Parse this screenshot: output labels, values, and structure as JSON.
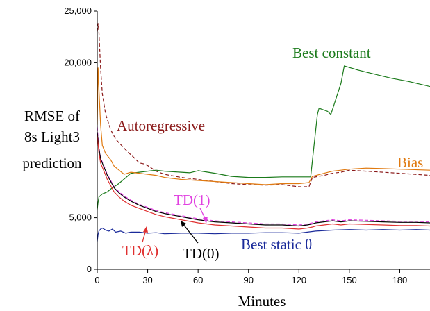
{
  "chart_data": {
    "type": "line",
    "xlabel": "Minutes",
    "ylabel_lines": [
      "RMSE of",
      "8s Light3",
      "prediction"
    ],
    "xlim": [
      0,
      198
    ],
    "ylim": [
      0,
      25000
    ],
    "x_ticks": [
      0,
      30,
      60,
      90,
      120,
      150,
      180
    ],
    "x_tick_labels": [
      "0",
      "30",
      "60",
      "90",
      "120",
      "150",
      "180"
    ],
    "y_ticks": [
      0,
      5000,
      20000,
      25000
    ],
    "y_tick_labels": [
      "0",
      "5,000",
      "20,000",
      "25,000"
    ],
    "grid": false,
    "annotations": [
      {
        "text": "Best constant",
        "color": "#1a7a1a"
      },
      {
        "text": "Autoregressive",
        "color": "#8b1a1a"
      },
      {
        "text": "Bias",
        "color": "#e07a10"
      },
      {
        "text": "TD(1)",
        "color": "#e040e0"
      },
      {
        "text": "TD(λ)",
        "color": "#e03030"
      },
      {
        "text": "TD(0)",
        "color": "#000000"
      },
      {
        "text": "Best static θ",
        "color": "#1a2a9a"
      }
    ],
    "series": [
      {
        "color": "#1a7a1a",
        "dash": false,
        "x": [
          0,
          0.5,
          1,
          3,
          6,
          9,
          12,
          15,
          20,
          25,
          30,
          35,
          40,
          45,
          50,
          55,
          60,
          70,
          80,
          90,
          100,
          110,
          120,
          126,
          127,
          131,
          132,
          137,
          139,
          145,
          147,
          155,
          165,
          175,
          185,
          198
        ],
        "y": [
          5800,
          6500,
          7000,
          7300,
          7500,
          7900,
          8200,
          8600,
          9300,
          9400,
          9500,
          9600,
          9500,
          9450,
          9400,
          9350,
          9550,
          9300,
          9000,
          8900,
          8900,
          8950,
          8950,
          8950,
          8950,
          15000,
          15600,
          15300,
          15000,
          18000,
          19700,
          19300,
          18900,
          18500,
          18200,
          17700
        ]
      },
      {
        "color": "#8b1a1a",
        "dash": true,
        "x": [
          0,
          0.5,
          1,
          2,
          3,
          5,
          8,
          11,
          15,
          18,
          22,
          25,
          28,
          30,
          35,
          40,
          50,
          60,
          70,
          80,
          90,
          100,
          110,
          120,
          126,
          128,
          135,
          140,
          145,
          150,
          160,
          170,
          180,
          198
        ],
        "y": [
          23000,
          23800,
          23000,
          19500,
          17000,
          15000,
          13500,
          12600,
          11900,
          11400,
          10800,
          10300,
          10200,
          10050,
          9500,
          9200,
          8900,
          8700,
          8500,
          8300,
          8200,
          8150,
          8200,
          8000,
          8000,
          8900,
          9100,
          9300,
          9400,
          9600,
          9500,
          9400,
          9300,
          9100
        ]
      },
      {
        "color": "#e07a10",
        "dash": false,
        "x": [
          0,
          0.5,
          1,
          2,
          3,
          5,
          8,
          10,
          13,
          16,
          20,
          25,
          30,
          35,
          40,
          45,
          50,
          60,
          70,
          80,
          90,
          100,
          110,
          120,
          126,
          128,
          135,
          140,
          145,
          150,
          160,
          170,
          180,
          198
        ],
        "y": [
          14000,
          19500,
          17500,
          14000,
          12000,
          11200,
          10600,
          10000,
          9600,
          9200,
          9400,
          9300,
          9200,
          9100,
          8900,
          8800,
          8700,
          8600,
          8500,
          8400,
          8300,
          8200,
          8300,
          8300,
          8400,
          9000,
          9300,
          9500,
          9600,
          9700,
          9800,
          9750,
          9700,
          9600
        ]
      },
      {
        "color": "#e040e0",
        "dash": true,
        "x": [
          0,
          1,
          2,
          4,
          6,
          8,
          10,
          13,
          16,
          20,
          25,
          30,
          35,
          40,
          50,
          60,
          70,
          80,
          90,
          100,
          110,
          120,
          125,
          128,
          130,
          140,
          145,
          150,
          160,
          170,
          180,
          190,
          198
        ],
        "y": [
          13800,
          11800,
          10800,
          10000,
          9200,
          8600,
          8000,
          7500,
          7100,
          6700,
          6300,
          6000,
          5700,
          5500,
          5200,
          4900,
          4700,
          4600,
          4500,
          4400,
          4400,
          4300,
          4400,
          4500,
          4600,
          4800,
          4700,
          4800,
          4750,
          4700,
          4650,
          4650,
          4600
        ]
      },
      {
        "color": "#000000",
        "dash": false,
        "x": [
          0,
          1,
          2,
          4,
          6,
          8,
          10,
          13,
          16,
          20,
          25,
          30,
          35,
          40,
          50,
          60,
          70,
          80,
          90,
          100,
          110,
          120,
          125,
          128,
          130,
          140,
          145,
          150,
          160,
          170,
          180,
          190,
          198
        ],
        "y": [
          13300,
          11700,
          10700,
          9900,
          9100,
          8500,
          7900,
          7400,
          7000,
          6600,
          6200,
          5900,
          5600,
          5400,
          5100,
          4800,
          4600,
          4500,
          4400,
          4300,
          4300,
          4200,
          4300,
          4400,
          4500,
          4700,
          4600,
          4700,
          4650,
          4600,
          4550,
          4550,
          4500
        ]
      },
      {
        "color": "#e03030",
        "dash": false,
        "x": [
          0,
          1,
          2,
          4,
          6,
          8,
          10,
          13,
          16,
          20,
          25,
          30,
          35,
          40,
          50,
          60,
          70,
          80,
          90,
          100,
          110,
          120,
          125,
          128,
          130,
          140,
          145,
          150,
          160,
          170,
          180,
          190,
          198
        ],
        "y": [
          13000,
          11300,
          10300,
          9500,
          8700,
          8100,
          7500,
          7000,
          6600,
          6200,
          5900,
          5600,
          5300,
          5100,
          4800,
          4500,
          4300,
          4200,
          4100,
          4000,
          4000,
          3900,
          4000,
          4100,
          4200,
          4400,
          4300,
          4400,
          4350,
          4300,
          4250,
          4250,
          4200
        ]
      },
      {
        "color": "#1a2a9a",
        "dash": false,
        "x": [
          0,
          0.5,
          1,
          2,
          3,
          5,
          7,
          9,
          11,
          14,
          17,
          20,
          25,
          30,
          35,
          40,
          50,
          60,
          70,
          80,
          90,
          100,
          110,
          120,
          125,
          130,
          140,
          150,
          160,
          170,
          180,
          190,
          198
        ],
        "y": [
          2700,
          3400,
          3700,
          3900,
          4000,
          3800,
          3700,
          3900,
          3600,
          3700,
          3500,
          3600,
          3600,
          3500,
          3550,
          3450,
          3500,
          3500,
          3450,
          3500,
          3500,
          3550,
          3550,
          3500,
          3600,
          3700,
          3800,
          3850,
          3800,
          3850,
          3800,
          3850,
          3800
        ]
      }
    ]
  }
}
